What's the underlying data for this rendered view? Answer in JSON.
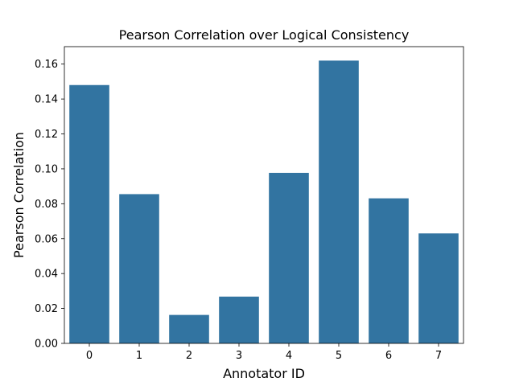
{
  "chart_data": {
    "type": "bar",
    "title": "Pearson Correlation over Logical Consistency",
    "xlabel": "Annotator ID",
    "ylabel": "Pearson Correlation",
    "categories": [
      "0",
      "1",
      "2",
      "3",
      "4",
      "5",
      "6",
      "7"
    ],
    "values": [
      0.148,
      0.0855,
      0.0163,
      0.0268,
      0.0977,
      0.162,
      0.0831,
      0.063
    ],
    "ylim": [
      0,
      0.17
    ],
    "yticks": [
      "0.00",
      "0.02",
      "0.04",
      "0.06",
      "0.08",
      "0.10",
      "0.12",
      "0.14",
      "0.16"
    ],
    "bar_color": "#3274a1",
    "grid": false,
    "legend": "none"
  }
}
